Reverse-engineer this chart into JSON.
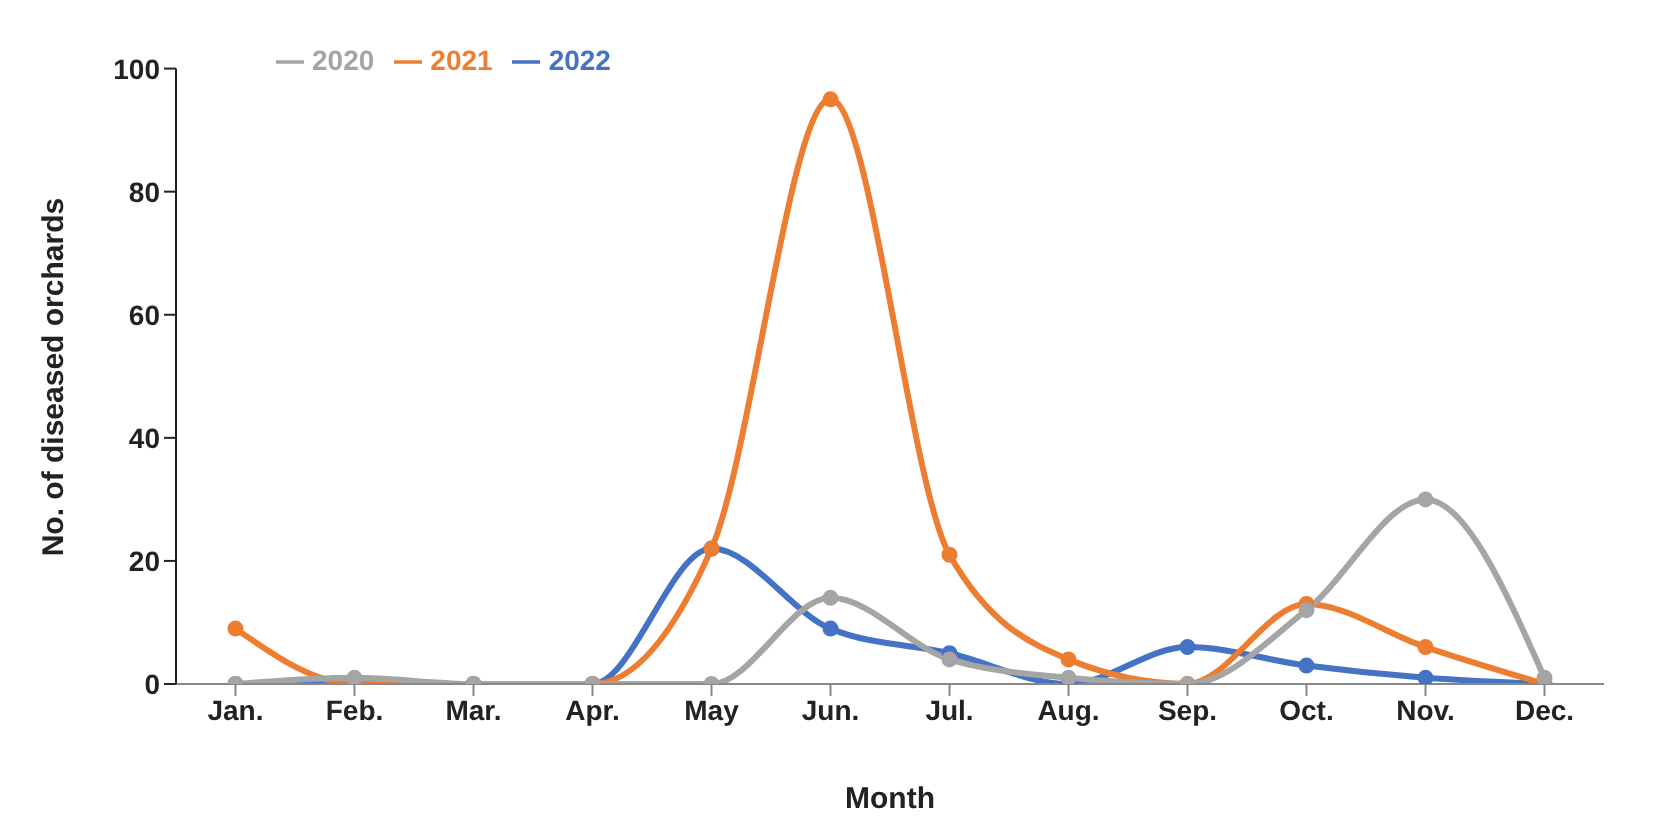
{
  "chart_data": {
    "type": "line",
    "xlabel": "Month",
    "ylabel": "No. of diseased orchards",
    "categories": [
      "Jan.",
      "Feb.",
      "Mar.",
      "Apr.",
      "May",
      "Jun.",
      "Jul.",
      "Aug.",
      "Sep.",
      "Oct.",
      "Nov.",
      "Dec."
    ],
    "series": [
      {
        "name": "2022",
        "color": "#4472c4",
        "values": [
          0,
          0,
          0,
          0,
          22,
          9,
          5,
          0,
          6,
          3,
          1,
          0
        ]
      },
      {
        "name": "2021",
        "color": "#ed7d31",
        "values": [
          9,
          0,
          0,
          0,
          22,
          95,
          21,
          4,
          0,
          13,
          6,
          0
        ]
      },
      {
        "name": "2020",
        "color": "#a5a5a5",
        "values": [
          0,
          1,
          0,
          0,
          0,
          14,
          4,
          1,
          0,
          12,
          30,
          1
        ]
      }
    ],
    "ylim": [
      0,
      100
    ],
    "yticks": [
      0,
      20,
      40,
      60,
      80,
      100
    ],
    "grid": false,
    "legend": "top left",
    "marker": "circle",
    "line_style": "solid"
  }
}
